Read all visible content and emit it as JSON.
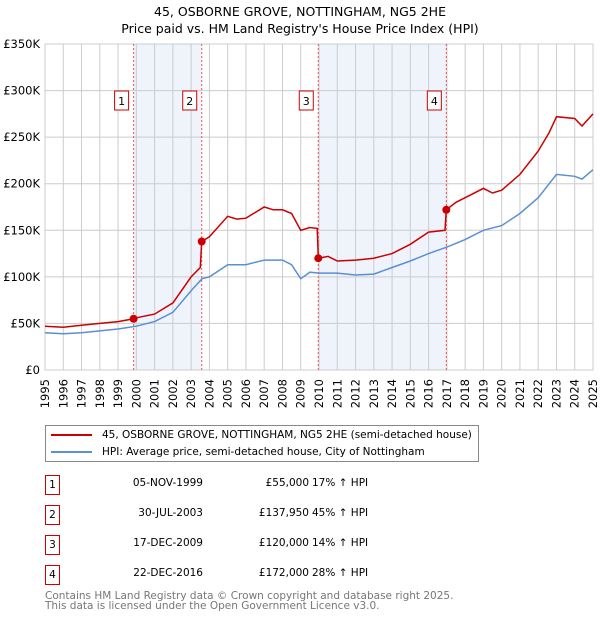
{
  "title": "45, OSBORNE GROVE, NOTTINGHAM, NG5 2HE",
  "subtitle": "Price paid vs. HM Land Registry's House Price Index (HPI)",
  "colors": {
    "property": "#cc0000",
    "hpi": "#5b8fd4",
    "shade": "#eef3fc",
    "grid": "#cccccc"
  },
  "chart_data": {
    "type": "line",
    "xlim": [
      1995,
      2025
    ],
    "ylim": [
      0,
      350000
    ],
    "x_ticks": [
      "1995",
      "1996",
      "1997",
      "1998",
      "1999",
      "2000",
      "2001",
      "2002",
      "2003",
      "2004",
      "2005",
      "2006",
      "2007",
      "2008",
      "2009",
      "2010",
      "2011",
      "2012",
      "2013",
      "2014",
      "2015",
      "2016",
      "2017",
      "2018",
      "2019",
      "2020",
      "2021",
      "2022",
      "2023",
      "2024",
      "2025"
    ],
    "y_ticks": [
      {
        "v": 0,
        "label": "£0"
      },
      {
        "v": 50000,
        "label": "£50K"
      },
      {
        "v": 100000,
        "label": "£100K"
      },
      {
        "v": 150000,
        "label": "£150K"
      },
      {
        "v": 200000,
        "label": "£200K"
      },
      {
        "v": 250000,
        "label": "£250K"
      },
      {
        "v": 300000,
        "label": "£300K"
      },
      {
        "v": 350000,
        "label": "£350K"
      }
    ],
    "shaded_ranges": [
      [
        1999.85,
        2003.58
      ],
      [
        2009.96,
        2016.97
      ]
    ],
    "series": [
      {
        "name": "45, OSBORNE GROVE, NOTTINGHAM, NG5 2HE (semi-detached house)",
        "color": "#cc0000",
        "x": [
          1995,
          1996,
          1997,
          1998,
          1999,
          1999.85,
          2000,
          2001,
          2002,
          2003,
          2003.5,
          2003.58,
          2004,
          2005,
          2005.5,
          2006,
          2007,
          2007.5,
          2008,
          2008.5,
          2009,
          2009.5,
          2009.9,
          2009.96,
          2010.5,
          2011,
          2012,
          2013,
          2014,
          2015,
          2016,
          2016.9,
          2016.97,
          2017.5,
          2018,
          2019,
          2019.5,
          2020,
          2021,
          2022,
          2022.6,
          2023,
          2024,
          2024.4,
          2025
        ],
        "y": [
          47000,
          46000,
          48000,
          50000,
          52000,
          55000,
          56000,
          60000,
          72000,
          100000,
          110000,
          137950,
          143000,
          165000,
          162000,
          163000,
          175000,
          172000,
          172000,
          168000,
          150000,
          153000,
          152000,
          120000,
          122000,
          117000,
          118000,
          120000,
          125000,
          135000,
          148000,
          150000,
          172000,
          180000,
          185000,
          195000,
          190000,
          193000,
          210000,
          235000,
          255000,
          272000,
          270000,
          262000,
          275000
        ]
      },
      {
        "name": "HPI: Average price, semi-detached house, City of Nottingham",
        "color": "#5b8fd4",
        "x": [
          1995,
          1996,
          1997,
          1998,
          1999,
          2000,
          2001,
          2002,
          2003,
          2003.6,
          2004,
          2005,
          2006,
          2007,
          2008,
          2008.5,
          2009,
          2009.5,
          2010,
          2011,
          2012,
          2013,
          2014,
          2015,
          2016,
          2017,
          2018,
          2019,
          2020,
          2021,
          2022,
          2023,
          2024,
          2024.4,
          2025
        ],
        "y": [
          40000,
          39000,
          40000,
          42000,
          44000,
          47000,
          52000,
          62000,
          85000,
          98000,
          100000,
          113000,
          113000,
          118000,
          118000,
          113000,
          98000,
          105000,
          104000,
          104000,
          102000,
          103000,
          110000,
          117000,
          125000,
          132000,
          140000,
          150000,
          155000,
          168000,
          185000,
          210000,
          208000,
          205000,
          215000
        ]
      }
    ],
    "markers": [
      {
        "n": "1",
        "x": 1999.85,
        "y": 55000
      },
      {
        "n": "2",
        "x": 2003.58,
        "y": 137950
      },
      {
        "n": "3",
        "x": 2009.96,
        "y": 120000
      },
      {
        "n": "4",
        "x": 2016.97,
        "y": 172000
      }
    ]
  },
  "legend": {
    "property": "45, OSBORNE GROVE, NOTTINGHAM, NG5 2HE (semi-detached house)",
    "hpi": "HPI: Average price, semi-detached house, City of Nottingham"
  },
  "transactions": [
    {
      "n": "1",
      "date": "05-NOV-1999",
      "price": "£55,000",
      "hpi": "17% ↑ HPI"
    },
    {
      "n": "2",
      "date": "30-JUL-2003",
      "price": "£137,950",
      "hpi": "45% ↑ HPI"
    },
    {
      "n": "3",
      "date": "17-DEC-2009",
      "price": "£120,000",
      "hpi": "14% ↑ HPI"
    },
    {
      "n": "4",
      "date": "22-DEC-2016",
      "price": "£172,000",
      "hpi": "28% ↑ HPI"
    }
  ],
  "footer": {
    "line1": "Contains HM Land Registry data © Crown copyright and database right 2025.",
    "line2": "This data is licensed under the Open Government Licence v3.0."
  }
}
